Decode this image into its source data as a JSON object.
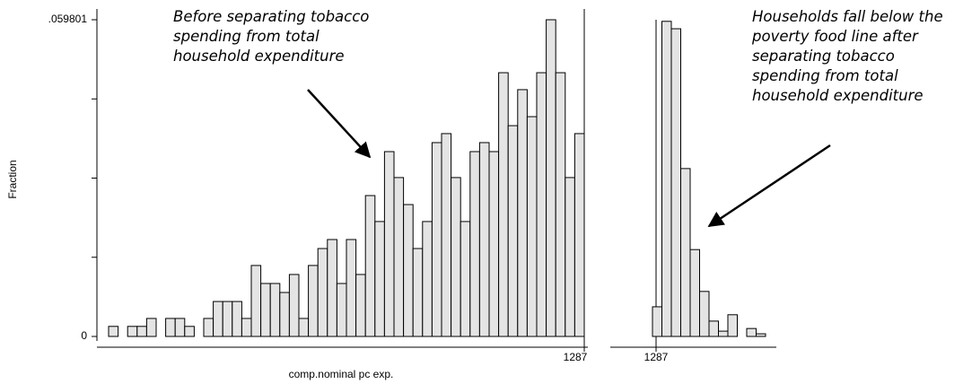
{
  "chart_data": [
    {
      "type": "bar",
      "y_label": "Fraction",
      "x_label": "comp.nominal pc exp.",
      "xref_label": "1287",
      "categories": [
        null,
        null,
        null,
        null,
        null,
        null,
        null,
        null,
        null,
        null,
        null,
        null,
        null,
        null,
        null,
        null,
        null,
        null,
        null,
        null,
        null,
        null,
        null,
        null,
        null,
        null,
        null,
        null,
        null,
        null,
        null,
        null,
        null,
        null,
        null,
        null,
        null,
        null,
        null,
        null,
        null,
        null,
        null,
        null,
        null,
        null,
        null,
        null,
        null,
        null
      ],
      "values": [
        0.0019,
        0,
        0.0019,
        0.0019,
        0.0034,
        0,
        0.0034,
        0.0034,
        0.0019,
        0,
        0.0034,
        0.0066,
        0.0066,
        0.0066,
        0.0034,
        0.0134,
        0.01,
        0.01,
        0.0083,
        0.0117,
        0.0034,
        0.0134,
        0.0166,
        0.0183,
        0.01,
        0.0183,
        0.0117,
        0.0266,
        0.0217,
        0.0349,
        0.03,
        0.0249,
        0.0166,
        0.0217,
        0.0366,
        0.0383,
        0.03,
        0.0217,
        0.0349,
        0.0366,
        0.0349,
        0.0498,
        0.0398,
        0.0466,
        0.0415,
        0.0498,
        0.0598,
        0.0498,
        0.03,
        0.0383
      ],
      "color": "#e4e4e4",
      "ylim": [
        0,
        0.059801
      ],
      "yticks": [
        0,
        {
          "value": 0.059801,
          "label": ".059801"
        }
      ],
      "yminorticks": [
        0.01495,
        0.0299,
        0.04485
      ],
      "annotation": [
        "Before separating tobacco",
        "spending from total",
        "household expenditure"
      ]
    },
    {
      "type": "bar",
      "xref_label": "1287",
      "categories": [
        null,
        null,
        null,
        null,
        null,
        null,
        null,
        null,
        null,
        null,
        null,
        null
      ],
      "values": [
        0.0056,
        0.0595,
        0.0581,
        0.0317,
        0.0164,
        0.0085,
        0.0029,
        0.001,
        0.0041,
        0,
        0.0015,
        0.0005
      ],
      "color": "#e4e4e4",
      "ylim": [
        0,
        0.059801
      ],
      "annotation": [
        "Households fall below the",
        "poverty food line after",
        "separating tobacco",
        "spending from total",
        "household expenditure"
      ]
    }
  ]
}
